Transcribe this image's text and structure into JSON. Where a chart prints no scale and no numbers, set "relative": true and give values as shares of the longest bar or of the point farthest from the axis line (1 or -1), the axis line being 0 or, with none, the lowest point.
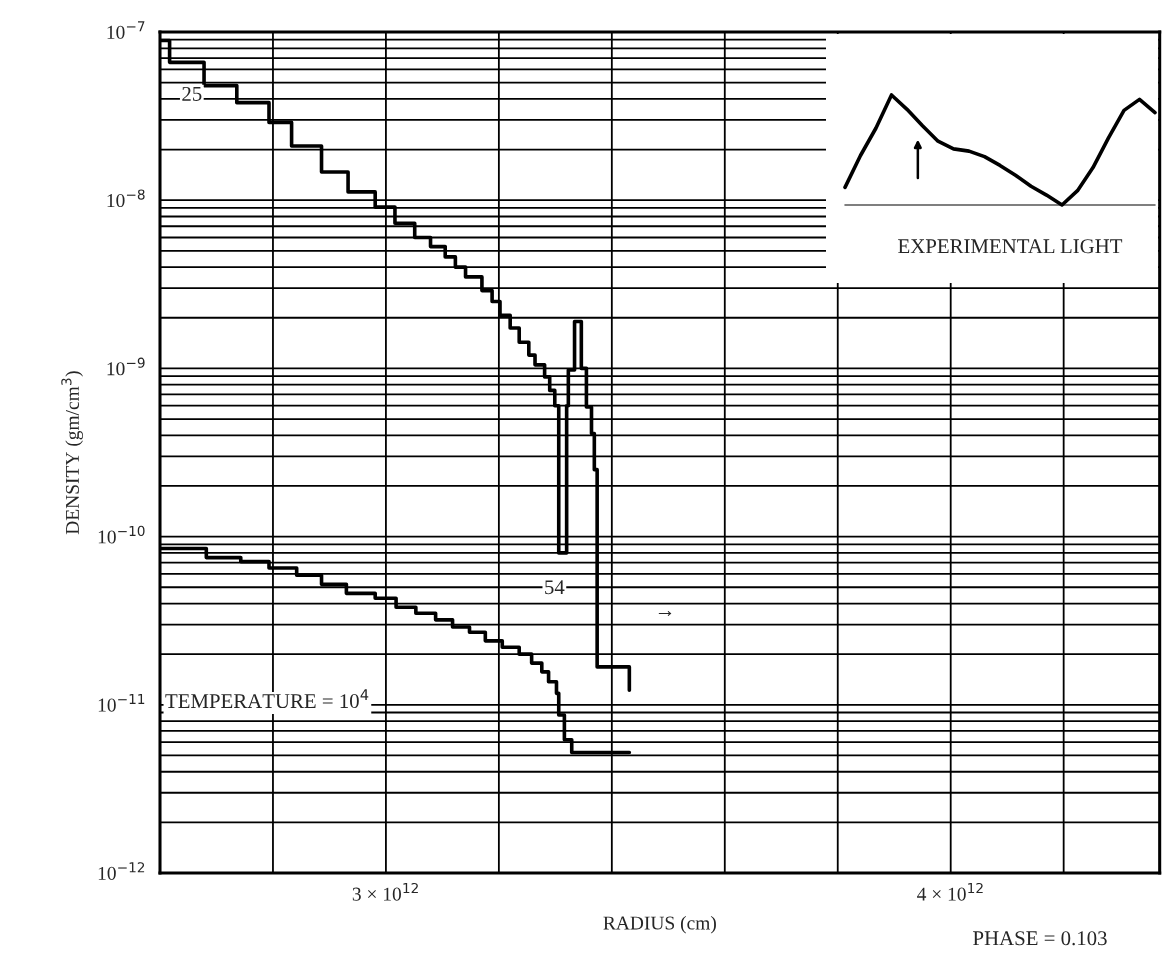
{
  "chart_data": [
    {
      "type": "step",
      "xlabel": "RADIUS (cm)",
      "ylabel": "DENSITY (gm/cm$^{3}$)",
      "annotations": [
        "TEMPERATURE = 10$^{4}$",
        {
          "text": "25",
          "x": 2617000000000.0,
          "y": 6.6e-08
        },
        {
          "text": "54",
          "x": 3313000000000.0,
          "y": 8e-11
        },
        "PHASE = 0.103",
        "→"
      ],
      "log": "y",
      "grid": true,
      "xlim": [
        2600000000000.0,
        4370000000000.0
      ],
      "ylim": [
        1e-12,
        1e-07
      ],
      "xticks": [
        {
          "value": 2800000000000.0,
          "label": null
        },
        {
          "value": 3000000000000.0,
          "label": "3 × 10$^{12}$"
        },
        {
          "value": 3200000000000.0,
          "label": null
        },
        {
          "value": 3400000000000.0,
          "label": null
        },
        {
          "value": 3600000000000.0,
          "label": null
        },
        {
          "value": 3800000000000.0,
          "label": null
        },
        {
          "value": 4000000000000.0,
          "label": "4 × 10$^{12}$"
        },
        {
          "value": 4200000000000.0,
          "label": null
        }
      ],
      "yticks": [
        {
          "value": 1e-12,
          "label": "10$^{−12}$"
        },
        {
          "value": 2e-12,
          "label": null
        },
        {
          "value": 3e-12,
          "label": null
        },
        {
          "value": 4e-12,
          "label": null
        },
        {
          "value": 5e-12,
          "label": null
        },
        {
          "value": 6e-12,
          "label": null
        },
        {
          "value": 7e-12,
          "label": null
        },
        {
          "value": 8e-12,
          "label": null
        },
        {
          "value": 9e-12,
          "label": null
        },
        {
          "value": 1e-11,
          "label": "10$^{−11}$"
        },
        {
          "value": 2e-11,
          "label": null
        },
        {
          "value": 3e-11,
          "label": null
        },
        {
          "value": 4e-11,
          "label": null
        },
        {
          "value": 5e-11,
          "label": null
        },
        {
          "value": 6e-11,
          "label": null
        },
        {
          "value": 7e-11,
          "label": null
        },
        {
          "value": 8e-11,
          "label": null
        },
        {
          "value": 9e-11,
          "label": null
        },
        {
          "value": 1e-10,
          "label": "10$^{−10}$"
        },
        {
          "value": 2e-10,
          "label": null
        },
        {
          "value": 3e-10,
          "label": null
        },
        {
          "value": 4e-10,
          "label": null
        },
        {
          "value": 5e-10,
          "label": null
        },
        {
          "value": 6e-10,
          "label": null
        },
        {
          "value": 7e-10,
          "label": null
        },
        {
          "value": 8e-10,
          "label": null
        },
        {
          "value": 9e-10,
          "label": null
        },
        {
          "value": 1e-09,
          "label": "10$^{−9}$"
        },
        {
          "value": 2e-09,
          "label": null
        },
        {
          "value": 3e-09,
          "label": null
        },
        {
          "value": 4e-09,
          "label": null
        },
        {
          "value": 5e-09,
          "label": null
        },
        {
          "value": 6e-09,
          "label": null
        },
        {
          "value": 7e-09,
          "label": null
        },
        {
          "value": 8e-09,
          "label": null
        },
        {
          "value": 9e-09,
          "label": null
        },
        {
          "value": 1e-08,
          "label": "10$^{−8}$"
        },
        {
          "value": 2e-08,
          "label": null
        },
        {
          "value": 3e-08,
          "label": null
        },
        {
          "value": 4e-08,
          "label": null
        },
        {
          "value": 5e-08,
          "label": null
        },
        {
          "value": 6e-08,
          "label": null
        },
        {
          "value": 7e-08,
          "label": null
        },
        {
          "value": 8e-08,
          "label": null
        },
        {
          "value": 9e-08,
          "label": null
        },
        {
          "value": 1e-07,
          "label": "10$^{−7}$"
        }
      ],
      "series": [
        {
          "color": "#000000",
          "x": [
            2600000000000.0,
            2617000000000.0,
            2678000000000.0,
            2736000000000.0,
            2793000000000.0,
            2833000000000.0,
            2886000000000.0,
            2933000000000.0,
            2981000000000.0,
            3016000000000.0,
            3051000000000.0,
            3079000000000.0,
            3105000000000.0,
            3123000000000.0,
            3141000000000.0,
            3170000000000.0,
            3188000000000.0,
            3202000000000.0,
            3220000000000.0,
            3236000000000.0,
            3253000000000.0,
            3264000000000.0,
            3281000000000.0,
            3290000000000.0,
            3299000000000.0,
            3306000000000.0,
            3320000000000.0,
            3323000000000.0,
            3334000000000.0,
            3346000000000.0,
            3355000000000.0,
            3364000000000.0,
            3369000000000.0,
            3374000000000.0,
            3431000000000.0
          ],
          "values": [
            8.9e-08,
            6.6e-08,
            4.8e-08,
            3.8e-08,
            2.9e-08,
            2.1e-08,
            1.47e-08,
            1.12e-08,
            9.1e-09,
            7.3e-09,
            6e-09,
            5.3e-09,
            4.6e-09,
            4e-09,
            3.5e-09,
            2.9e-09,
            2.5e-09,
            2.07e-09,
            1.74e-09,
            1.43e-09,
            1.2e-09,
            1.05e-09,
            8.9e-10,
            7.4e-10,
            6e-10,
            8e-11,
            6e-10,
            9.8e-10,
            1.9e-09,
            1e-09,
            5.9e-10,
            4.1e-10,
            2.5e-10,
            1.68e-11,
            1.22e-11
          ]
        },
        {
          "color": "#000000",
          "x": [
            2600000000000.0,
            2682000000000.0,
            2743000000000.0,
            2793000000000.0,
            2842000000000.0,
            2886000000000.0,
            2930000000000.0,
            2981000000000.0,
            3018000000000.0,
            3053000000000.0,
            3088000000000.0,
            3118000000000.0,
            3148000000000.0,
            3176000000000.0,
            3206000000000.0,
            3236000000000.0,
            3258000000000.0,
            3276000000000.0,
            3288000000000.0,
            3302000000000.0,
            3306000000000.0,
            3316000000000.0,
            3329000000000.0,
            3431000000000.0
          ],
          "values": [
            8.5e-11,
            7.5e-11,
            7.1e-11,
            6.5e-11,
            5.9e-11,
            5.2e-11,
            4.6e-11,
            4.3e-11,
            3.8e-11,
            3.5e-11,
            3.2e-11,
            2.9e-11,
            2.7e-11,
            2.4e-11,
            2.2e-11,
            2e-11,
            1.77e-11,
            1.57e-11,
            1.37e-11,
            1.17e-11,
            8.7e-12,
            6.2e-12,
            5.2e-12,
            5.2e-12
          ]
        }
      ]
    },
    {
      "type": "line",
      "relative": true,
      "annotations": [
        "EXPERIMENTAL LIGHT"
      ],
      "categories": [
        null,
        null,
        null,
        null,
        null,
        null,
        null,
        null,
        null,
        null,
        null,
        null,
        null,
        null,
        null,
        null,
        null,
        null,
        null,
        null,
        null
      ],
      "series": [
        {
          "color": "#000000",
          "values": [
            0.16,
            0.45,
            0.7,
            1.0,
            0.87,
            0.72,
            0.58,
            0.51,
            0.49,
            0.44,
            0.36,
            0.27,
            0.17,
            0.09,
            0,
            0.13,
            0.34,
            0.61,
            0.86,
            0.96,
            0.84
          ]
        }
      ]
    }
  ]
}
